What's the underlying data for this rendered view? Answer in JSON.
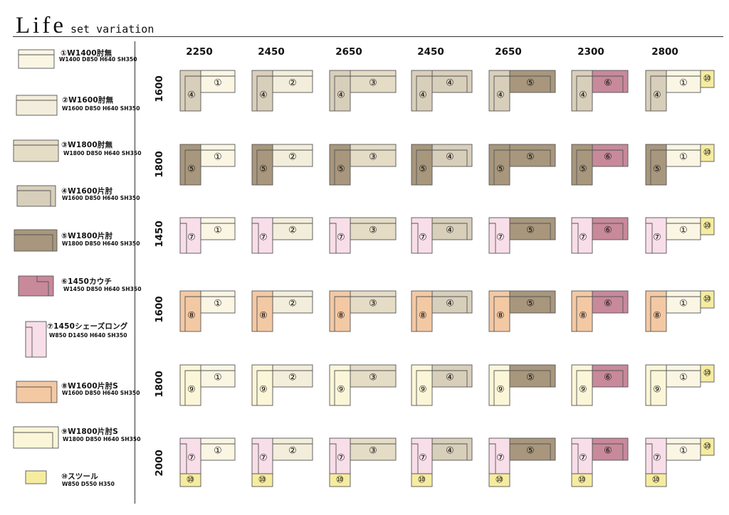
{
  "title": {
    "main": "Life",
    "sub": "set variation"
  },
  "colors": {
    "m1": "#fbf6e4",
    "m2": "#f3eedb",
    "m3": "#e5dcc6",
    "m4": "#d8cfbb",
    "m5": "#a8977d",
    "m6": "#c8899b",
    "m7": "#f8dee8",
    "m8": "#f3c9a4",
    "m9": "#fcf6d8",
    "m10": "#f6eca0",
    "stroke": "#555555"
  },
  "legend": [
    {
      "id": 1,
      "name": "①W1400肘無",
      "dims": "W1400 D850 H640 SH350"
    },
    {
      "id": 2,
      "name": "②W1600肘無",
      "dims": "W1600 D850 H640 SH350"
    },
    {
      "id": 3,
      "name": "③W1800肘無",
      "dims": "W1800 D850 H640 SH350"
    },
    {
      "id": 4,
      "name": "④W1600片肘",
      "dims": "W1600 D850 H640 SH350"
    },
    {
      "id": 5,
      "name": "⑤W1800片肘",
      "dims": "W1800 D850 H640 SH350"
    },
    {
      "id": 6,
      "name": "⑥1450カウチ",
      "dims": "W1450 D850 H640 SH350"
    },
    {
      "id": 7,
      "name": "⑦1450シェーズロング",
      "dims": "W850 D1450 H640 SH350"
    },
    {
      "id": 8,
      "name": "⑧W1600片肘S",
      "dims": "W1600 D850 H640 SH350"
    },
    {
      "id": 9,
      "name": "⑨W1800片肘S",
      "dims": "W1800 D850 H640 SH350"
    },
    {
      "id": 10,
      "name": "⑩スツール",
      "dims": "W850 D550 H350"
    }
  ],
  "columns": [
    "2250",
    "2450",
    "2650",
    "2450",
    "2650",
    "2300",
    "2800"
  ],
  "column_tops": [
    1,
    2,
    3,
    4,
    5,
    6,
    1
  ],
  "rows": [
    {
      "label": "1600",
      "left": 4,
      "stool": false
    },
    {
      "label": "1800",
      "left": 5,
      "stool": false
    },
    {
      "label": "1450",
      "left": 7,
      "stool": false
    },
    {
      "label": "1600",
      "left": 8,
      "stool": false
    },
    {
      "label": "1800",
      "left": 9,
      "stool": false
    },
    {
      "label": "2000",
      "left": 7,
      "stool": true
    }
  ],
  "glyphs": {
    "1": "①",
    "2": "②",
    "3": "③",
    "4": "④",
    "5": "⑤",
    "6": "⑥",
    "7": "⑦",
    "8": "⑧",
    "9": "⑨",
    "10": "⑩"
  }
}
